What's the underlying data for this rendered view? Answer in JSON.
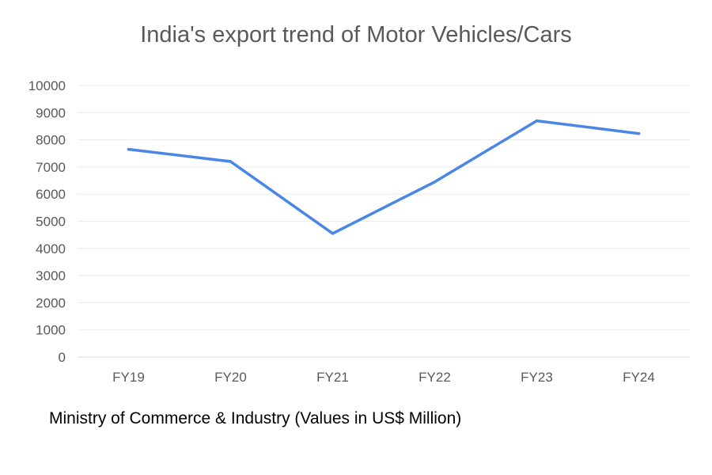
{
  "chart_data": {
    "type": "line",
    "title": "India's export trend of Motor Vehicles/Cars",
    "xlabel": "",
    "ylabel": "",
    "categories": [
      "FY19",
      "FY20",
      "FY21",
      "FY22",
      "FY23",
      "FY24"
    ],
    "series": [
      {
        "values": [
          7650,
          7200,
          4550,
          6450,
          8700,
          8230
        ],
        "color": "#4a86e8"
      }
    ],
    "ylim": [
      0,
      10000
    ],
    "yticks": [
      "0",
      "1000",
      "2000",
      "3000",
      "4000",
      "5000",
      "6000",
      "7000",
      "8000",
      "9000",
      "10000"
    ],
    "grid": true,
    "legend": "none"
  },
  "source_note": "Ministry of Commerce & Industry (Values in US$ Million)"
}
